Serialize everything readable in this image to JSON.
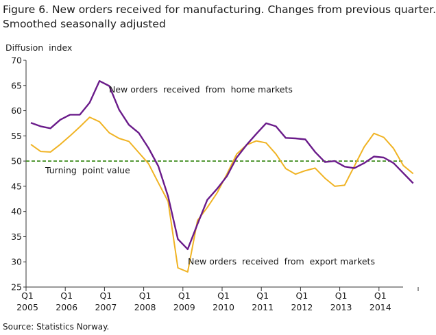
{
  "title_line1": "Figure 6. New orders received for manufacturing. Changes from previous quarter.",
  "title_line2": "Smoothed seasonally adjusted",
  "source": "Source: Statistics Norway.",
  "chart_data": {
    "type": "line",
    "ylabel": "Diffusion  index",
    "ylim": [
      25,
      70
    ],
    "y_ticks": [
      25,
      30,
      35,
      40,
      45,
      50,
      55,
      60,
      65,
      70
    ],
    "x_tick_labels": [
      {
        "q": "Q1",
        "year": "2005"
      },
      {
        "q": "Q1",
        "year": "2006"
      },
      {
        "q": "Q1",
        "year": "2007"
      },
      {
        "q": "Q1",
        "year": "2008"
      },
      {
        "q": "Q1",
        "year": "2009"
      },
      {
        "q": "Q1",
        "year": "2010"
      },
      {
        "q": "Q1",
        "year": "2011"
      },
      {
        "q": "Q1",
        "year": "2012"
      },
      {
        "q": "Q1",
        "year": "2013"
      },
      {
        "q": "Q1",
        "year": "2014"
      }
    ],
    "categories": [
      "2005Q1",
      "2005Q2",
      "2005Q3",
      "2005Q4",
      "2006Q1",
      "2006Q2",
      "2006Q3",
      "2006Q4",
      "2007Q1",
      "2007Q2",
      "2007Q3",
      "2007Q4",
      "2008Q1",
      "2008Q2",
      "2008Q3",
      "2008Q4",
      "2009Q1",
      "2009Q2",
      "2009Q3",
      "2009Q4",
      "2010Q1",
      "2010Q2",
      "2010Q3",
      "2010Q4",
      "2011Q1",
      "2011Q2",
      "2011Q3",
      "2011Q4",
      "2012Q1",
      "2012Q2",
      "2012Q3",
      "2012Q4",
      "2013Q1",
      "2013Q2",
      "2013Q3",
      "2013Q4",
      "2014Q1",
      "2014Q2",
      "2014Q3",
      "2014Q4"
    ],
    "series": [
      {
        "name": "New orders  received  from  home markets",
        "color": "#6a1b8a",
        "values": [
          57.6,
          56.9,
          56.5,
          58.2,
          59.2,
          59.2,
          61.6,
          65.9,
          64.9,
          60.2,
          57.2,
          55.6,
          52.6,
          49.0,
          43.0,
          34.5,
          32.5,
          37.5,
          42.3,
          44.5,
          47.0,
          50.7,
          53.2,
          55.4,
          57.5,
          56.9,
          54.6,
          54.5,
          54.3,
          51.8,
          49.8,
          50.0,
          48.9,
          48.6,
          49.6,
          50.9,
          50.7,
          49.6,
          47.6,
          45.6
        ]
      },
      {
        "name": "New orders  received  from  export markets",
        "color": "#f0b323",
        "values": [
          53.3,
          51.9,
          51.8,
          53.3,
          55.0,
          56.8,
          58.7,
          57.8,
          55.6,
          54.5,
          53.9,
          51.7,
          49.5,
          45.7,
          42.0,
          28.8,
          28.0,
          38.2,
          40.8,
          43.7,
          47.4,
          51.4,
          53.2,
          54.0,
          53.6,
          51.4,
          48.5,
          47.4,
          48.1,
          48.6,
          46.6,
          45.0,
          45.2,
          49.0,
          52.8,
          55.5,
          54.7,
          52.5,
          49.1,
          47.5
        ]
      }
    ],
    "reference_line": {
      "label": "Turning  point value",
      "value": 50,
      "color": "#3a8a1a"
    },
    "grid": false,
    "legend": "inline annotations"
  }
}
